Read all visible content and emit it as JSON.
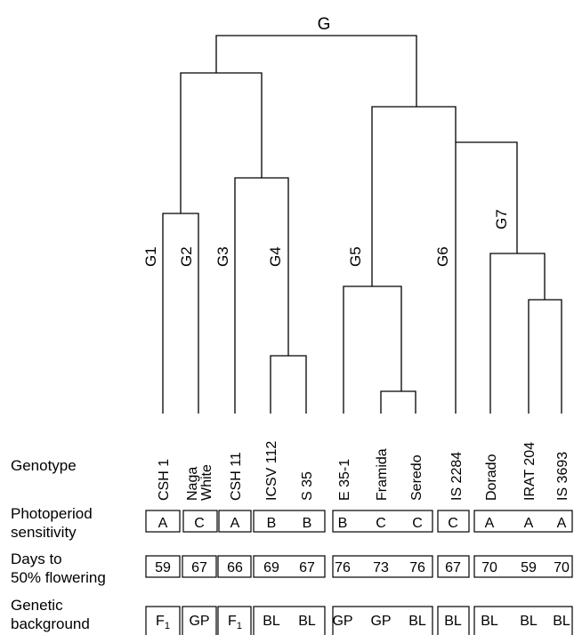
{
  "root_label": "G",
  "group_labels": [
    "G1",
    "G2",
    "G3",
    "G4",
    "G5",
    "G6",
    "G7"
  ],
  "genotypes": [
    {
      "lines": [
        "CSH 1"
      ]
    },
    {
      "lines": [
        "Naga",
        "White"
      ]
    },
    {
      "lines": [
        "CSH 11"
      ]
    },
    {
      "lines": [
        "ICSV 112"
      ]
    },
    {
      "lines": [
        "S 35"
      ]
    },
    {
      "lines": [
        "E 35-1"
      ]
    },
    {
      "lines": [
        "Framida"
      ]
    },
    {
      "lines": [
        "Seredo"
      ]
    },
    {
      "lines": [
        "IS 2284"
      ]
    },
    {
      "lines": [
        "Dorado"
      ]
    },
    {
      "lines": [
        "IRAT 204"
      ]
    },
    {
      "lines": [
        "IS 3693"
      ]
    }
  ],
  "row_labels": {
    "genotype": [
      "Genotype"
    ],
    "photoperiod": [
      "Photoperiod",
      "sensitivity"
    ],
    "days": [
      "Days to",
      "50% flowering"
    ],
    "background": [
      "Genetic",
      "background"
    ]
  },
  "photoperiod": [
    "A",
    "C",
    "A",
    "B",
    "B",
    "B",
    "C",
    "C",
    "C",
    "A",
    "A",
    "A"
  ],
  "days_to_flowering": [
    "59",
    "67",
    "66",
    "69",
    "67",
    "76",
    "73",
    "76",
    "67",
    "70",
    "59",
    "70"
  ],
  "genetic_background": [
    {
      "base": "F",
      "sub": "1"
    },
    {
      "base": "GP",
      "sub": ""
    },
    {
      "base": "F",
      "sub": "1"
    },
    {
      "base": "BL",
      "sub": ""
    },
    {
      "base": "BL",
      "sub": ""
    },
    {
      "base": "GP",
      "sub": ""
    },
    {
      "base": "GP",
      "sub": ""
    },
    {
      "base": "BL",
      "sub": ""
    },
    {
      "base": "BL",
      "sub": ""
    },
    {
      "base": "BL",
      "sub": ""
    },
    {
      "base": "BL",
      "sub": ""
    },
    {
      "base": "BL",
      "sub": ""
    }
  ]
}
